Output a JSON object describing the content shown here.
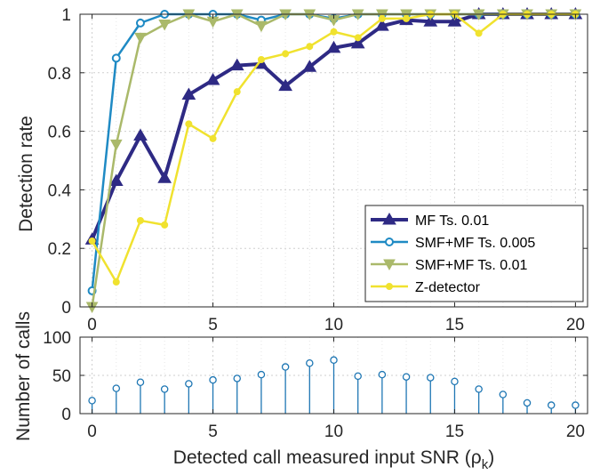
{
  "chart_data": [
    {
      "type": "line",
      "ylabel": "Detection rate",
      "xlim": [
        -0.5,
        20.5
      ],
      "ylim": [
        0,
        1
      ],
      "xticks": [
        0,
        5,
        10,
        15,
        20
      ],
      "yticks": [
        0,
        0.2,
        0.4,
        0.6,
        0.8,
        1
      ],
      "ytick_labels": [
        "0",
        "0.2",
        "0.4",
        "0.6",
        "0.8",
        "1"
      ],
      "grid": "dotted",
      "legend_position": "bottom-right",
      "x": [
        0,
        1,
        2,
        3,
        4,
        5,
        6,
        7,
        8,
        9,
        10,
        11,
        12,
        13,
        14,
        15,
        16,
        17,
        18,
        19,
        20
      ],
      "series": [
        {
          "name": "MF Ts. 0.01",
          "color": "#2e2a84",
          "marker": "triangle-up",
          "values": [
            0.23,
            0.43,
            0.585,
            0.44,
            0.725,
            0.775,
            0.825,
            0.83,
            0.755,
            0.82,
            0.885,
            0.9,
            0.96,
            0.98,
            0.975,
            0.975,
            1,
            1,
            1,
            1,
            1
          ]
        },
        {
          "name": "SMF+MF Ts. 0.005",
          "color": "#1f8ac4",
          "marker": "circle",
          "values": [
            0.055,
            0.85,
            0.97,
            1,
            1,
            1,
            1,
            0.98,
            1,
            1,
            0.985,
            1,
            1,
            1,
            1,
            1,
            1,
            1,
            1,
            1,
            1
          ]
        },
        {
          "name": "SMF+MF Ts. 0.01",
          "color": "#aab96a",
          "marker": "triangle-down",
          "values": [
            0.0,
            0.555,
            0.92,
            0.965,
            1,
            0.975,
            1,
            0.96,
            1,
            1,
            0.98,
            1,
            1,
            1,
            1,
            1,
            1,
            1,
            1,
            1,
            1
          ]
        },
        {
          "name": "Z-detector",
          "color": "#f0e22f",
          "marker": "dot",
          "values": [
            0.225,
            0.085,
            0.295,
            0.28,
            0.625,
            0.575,
            0.735,
            0.845,
            0.865,
            0.89,
            0.94,
            0.92,
            0.985,
            0.985,
            1,
            1,
            0.935,
            1,
            1,
            1,
            1
          ]
        }
      ]
    },
    {
      "type": "stem",
      "xlabel": "Detected call measured input SNR (ρ",
      "xlabel_subscript": "k",
      "xlabel_close": ")",
      "ylabel": "Number of calls",
      "xlim": [
        -0.5,
        20.5
      ],
      "ylim": [
        0,
        100
      ],
      "xticks": [
        0,
        5,
        10,
        15,
        20
      ],
      "yticks": [
        0,
        50,
        100
      ],
      "color": "#1f77b4",
      "x": [
        0,
        1,
        2,
        3,
        4,
        5,
        6,
        7,
        8,
        9,
        10,
        11,
        12,
        13,
        14,
        15,
        16,
        17,
        18,
        19,
        20
      ],
      "values": [
        17,
        33,
        41,
        32,
        39,
        44,
        46,
        51,
        61,
        66,
        70,
        49,
        51,
        48,
        47,
        42,
        32,
        25,
        14,
        11,
        11
      ]
    }
  ]
}
